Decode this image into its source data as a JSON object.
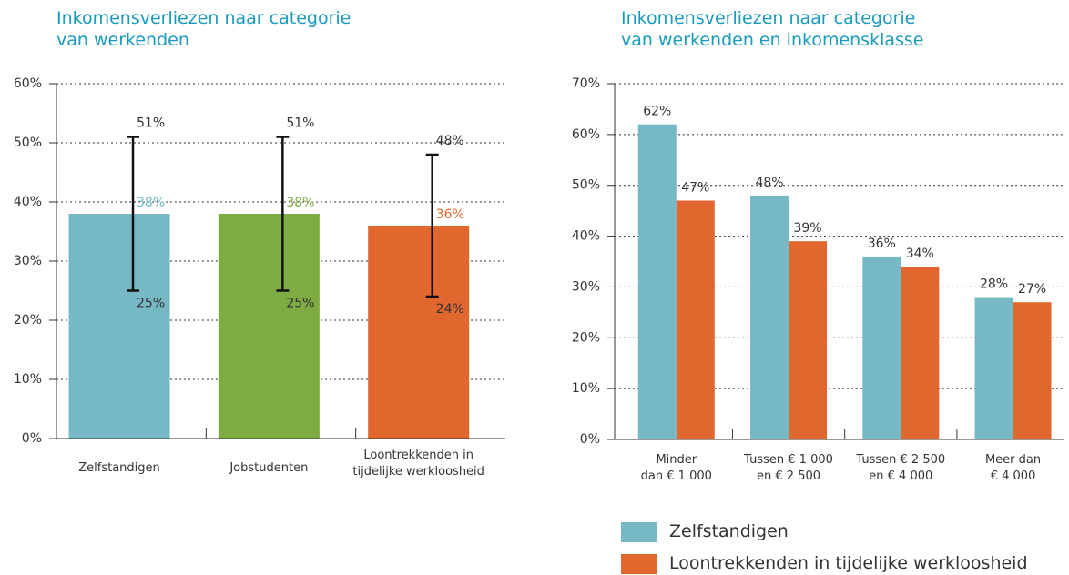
{
  "chart_data": [
    {
      "type": "bar_error",
      "title": "Inkomensverliezen naar categorie\nvan werkenden",
      "categories": [
        "Zelfstandigen",
        "Jobstudenten",
        "Loontrekkenden in\ntijdelijke werkloosheid"
      ],
      "values": [
        38,
        38,
        36
      ],
      "value_labels": [
        "38%",
        "38%",
        "36%"
      ],
      "colors": [
        "#76b9c5",
        "#7eab42",
        "#e2672e"
      ],
      "error_upper": [
        51,
        51,
        48
      ],
      "error_upper_labels": [
        "51%",
        "51%",
        "48%"
      ],
      "error_lower": [
        25,
        25,
        24
      ],
      "error_lower_labels": [
        "25%",
        "25%",
        "24%"
      ],
      "ylim": [
        0,
        60
      ],
      "yticks": [
        {
          "value": 0,
          "label": "0%"
        },
        {
          "value": 10,
          "label": "10%"
        },
        {
          "value": 20,
          "label": "20%"
        },
        {
          "value": 30,
          "label": "30%"
        },
        {
          "value": 40,
          "label": "40%"
        },
        {
          "value": 50,
          "label": "50%"
        },
        {
          "value": 60,
          "label": "60%"
        }
      ],
      "grid": true
    },
    {
      "type": "grouped_bar",
      "title": "Inkomensverliezen naar categorie\nvan werkenden en inkomensklasse",
      "categories": [
        "Minder\ndan € 1 000",
        "Tussen € 1 000\nen € 2 500",
        "Tussen € 2 500\nen € 4 000",
        "Meer dan\n€ 4 000"
      ],
      "series": [
        {
          "name": "Zelfstandigen",
          "color": "#76b9c5",
          "values": [
            62,
            48,
            36,
            28
          ],
          "value_labels": [
            "62%",
            "48%",
            "36%",
            "28%"
          ]
        },
        {
          "name": "Loontrekkenden in tijdelijke werkloosheid",
          "color": "#e2672e",
          "values": [
            47,
            39,
            34,
            27
          ],
          "value_labels": [
            "47%",
            "39%",
            "34%",
            "27%"
          ]
        }
      ],
      "ylim": [
        0,
        70
      ],
      "yticks": [
        {
          "value": 0,
          "label": "0%"
        },
        {
          "value": 10,
          "label": "10%"
        },
        {
          "value": 20,
          "label": "20%"
        },
        {
          "value": 30,
          "label": "30%"
        },
        {
          "value": 40,
          "label": "40%"
        },
        {
          "value": 50,
          "label": "50%"
        },
        {
          "value": 60,
          "label": "60%"
        },
        {
          "value": 70,
          "label": "70%"
        }
      ],
      "grid": true
    }
  ]
}
